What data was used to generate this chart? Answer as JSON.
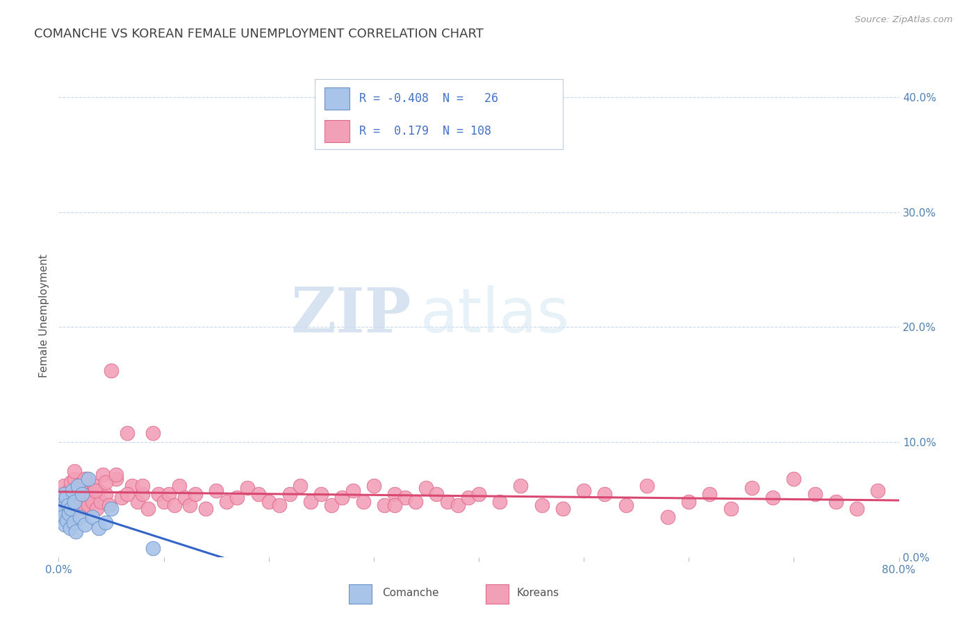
{
  "title": "COMANCHE VS KOREAN FEMALE UNEMPLOYMENT CORRELATION CHART",
  "source_text": "Source: ZipAtlas.com",
  "ylabel": "Female Unemployment",
  "watermark_zip": "ZIP",
  "watermark_atlas": "atlas",
  "xlim": [
    0.0,
    0.8
  ],
  "ylim": [
    0.0,
    0.42
  ],
  "xticks": [
    0.0,
    0.1,
    0.2,
    0.3,
    0.4,
    0.5,
    0.6,
    0.7,
    0.8
  ],
  "xtick_labels": [
    "0.0%",
    "",
    "",
    "",
    "",
    "",
    "",
    "",
    "80.0%"
  ],
  "yticks": [
    0.0,
    0.1,
    0.2,
    0.3,
    0.4
  ],
  "ytick_labels": [
    "0.0%",
    "10.0%",
    "20.0%",
    "30.0%",
    "40.0%"
  ],
  "comanche_color": "#a8c4e8",
  "korean_color": "#f2a0b8",
  "comanche_edge": "#6890c8",
  "korean_edge": "#e06888",
  "regression_blue": "#3264c8",
  "regression_pink": "#d84870",
  "R_comanche": -0.408,
  "N_comanche": 26,
  "R_korean": 0.179,
  "N_korean": 108,
  "legend_text_color": "#4472c4",
  "title_color": "#404040",
  "axis_label_color": "#505050",
  "tick_color": "#5080b0",
  "grid_color": "#c8d8ec",
  "background_color": "#ffffff",
  "comanche_x": [
    0.001,
    0.002,
    0.003,
    0.004,
    0.005,
    0.006,
    0.007,
    0.008,
    0.009,
    0.01,
    0.011,
    0.012,
    0.013,
    0.014,
    0.015,
    0.016,
    0.018,
    0.02,
    0.022,
    0.025,
    0.028,
    0.032,
    0.038,
    0.045,
    0.05,
    0.09
  ],
  "comanche_y": [
    0.048,
    0.038,
    0.042,
    0.035,
    0.055,
    0.028,
    0.052,
    0.032,
    0.045,
    0.038,
    0.025,
    0.042,
    0.058,
    0.03,
    0.048,
    0.022,
    0.062,
    0.035,
    0.055,
    0.028,
    0.068,
    0.035,
    0.025,
    0.03,
    0.042,
    0.008
  ],
  "korean_x": [
    0.001,
    0.002,
    0.003,
    0.004,
    0.005,
    0.006,
    0.007,
    0.008,
    0.009,
    0.01,
    0.011,
    0.012,
    0.013,
    0.014,
    0.015,
    0.016,
    0.017,
    0.018,
    0.019,
    0.02,
    0.021,
    0.022,
    0.023,
    0.024,
    0.025,
    0.026,
    0.027,
    0.028,
    0.03,
    0.032,
    0.034,
    0.036,
    0.038,
    0.04,
    0.042,
    0.045,
    0.048,
    0.05,
    0.055,
    0.06,
    0.065,
    0.07,
    0.075,
    0.08,
    0.085,
    0.09,
    0.095,
    0.1,
    0.105,
    0.11,
    0.115,
    0.12,
    0.125,
    0.13,
    0.14,
    0.15,
    0.16,
    0.17,
    0.18,
    0.19,
    0.2,
    0.21,
    0.22,
    0.23,
    0.24,
    0.25,
    0.26,
    0.27,
    0.28,
    0.29,
    0.3,
    0.31,
    0.32,
    0.33,
    0.34,
    0.35,
    0.36,
    0.37,
    0.38,
    0.39,
    0.4,
    0.42,
    0.44,
    0.46,
    0.48,
    0.5,
    0.52,
    0.54,
    0.56,
    0.58,
    0.6,
    0.62,
    0.64,
    0.66,
    0.68,
    0.7,
    0.72,
    0.74,
    0.76,
    0.78,
    0.015,
    0.025,
    0.035,
    0.045,
    0.055,
    0.065,
    0.08,
    0.32
  ],
  "korean_y": [
    0.042,
    0.055,
    0.048,
    0.038,
    0.062,
    0.045,
    0.052,
    0.035,
    0.048,
    0.058,
    0.04,
    0.065,
    0.042,
    0.055,
    0.068,
    0.048,
    0.042,
    0.058,
    0.045,
    0.062,
    0.055,
    0.048,
    0.065,
    0.042,
    0.058,
    0.052,
    0.068,
    0.045,
    0.055,
    0.048,
    0.062,
    0.042,
    0.058,
    0.048,
    0.072,
    0.055,
    0.045,
    0.162,
    0.068,
    0.052,
    0.108,
    0.062,
    0.048,
    0.055,
    0.042,
    0.108,
    0.055,
    0.048,
    0.055,
    0.045,
    0.062,
    0.052,
    0.045,
    0.055,
    0.042,
    0.058,
    0.048,
    0.052,
    0.06,
    0.055,
    0.048,
    0.045,
    0.055,
    0.062,
    0.048,
    0.055,
    0.045,
    0.052,
    0.058,
    0.048,
    0.062,
    0.045,
    0.055,
    0.052,
    0.048,
    0.06,
    0.055,
    0.048,
    0.045,
    0.052,
    0.055,
    0.048,
    0.062,
    0.045,
    0.042,
    0.058,
    0.055,
    0.045,
    0.062,
    0.035,
    0.048,
    0.055,
    0.042,
    0.06,
    0.052,
    0.068,
    0.055,
    0.048,
    0.042,
    0.058,
    0.075,
    0.068,
    0.058,
    0.065,
    0.072,
    0.055,
    0.062,
    0.045
  ]
}
